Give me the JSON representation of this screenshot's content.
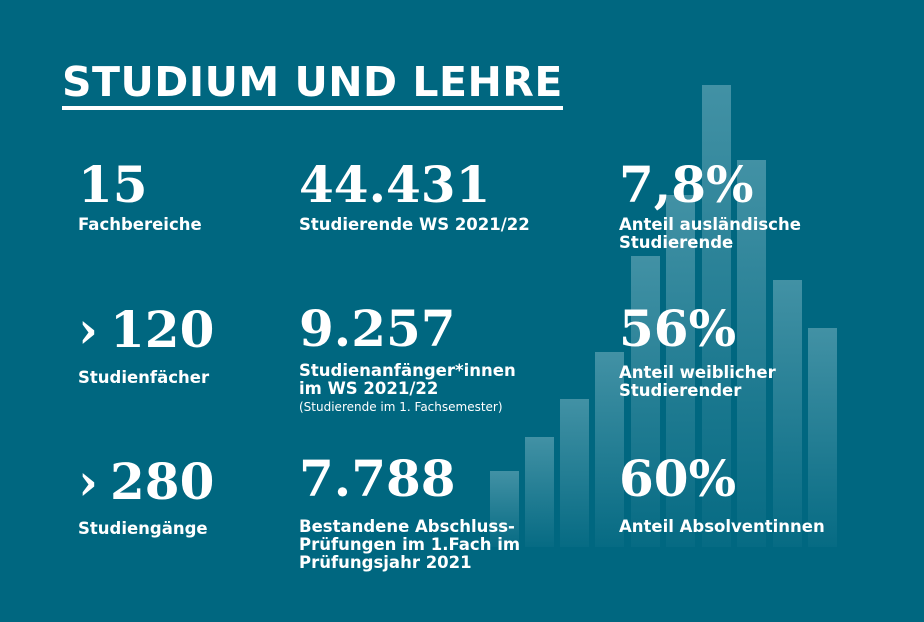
{
  "title": "STUDIUM UND LEHRE",
  "stats": [
    {
      "value": "15",
      "label": "Fachbereiche"
    },
    {
      "value": "44.431",
      "label": "Studierende WS 2021/22"
    },
    {
      "value": "7,8%",
      "label_lines": [
        "Anteil ausländische",
        "Studierende"
      ]
    },
    {
      "prefix": "›",
      "value": "120",
      "label": "Studienfächer"
    },
    {
      "value": "9.257",
      "label_lines": [
        "Studienanfänger*innen",
        "im WS 2021/22"
      ],
      "note": "(Studierende im 1. Fachsemester)"
    },
    {
      "value": "56%",
      "label_lines": [
        "Anteil weiblicher",
        "Studierender"
      ]
    },
    {
      "prefix": "›",
      "value": "280",
      "label": "Studiengänge"
    },
    {
      "value": "7.788",
      "label_lines": [
        "Bestandene Abschluss-",
        "Prüfungen im 1.Fach im",
        "Prüfungsjahr 2021"
      ]
    },
    {
      "value": "60%",
      "label": "Anteil Absolventinnen"
    }
  ],
  "colors": {
    "background": "#006780",
    "text": "#ffffff"
  }
}
